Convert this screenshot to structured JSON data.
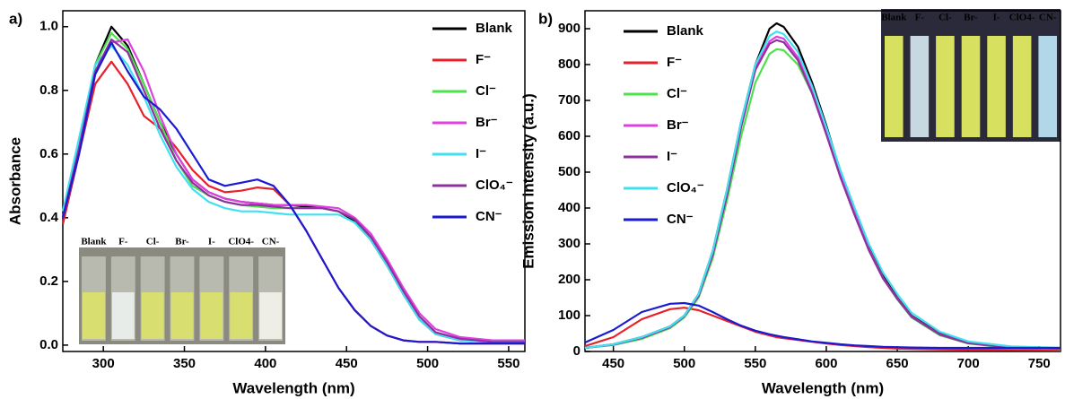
{
  "chart_data": [
    {
      "type": "line",
      "label": "a)",
      "xlabel": "Wavelength (nm)",
      "ylabel": "Absorbance",
      "xlim": [
        275,
        560
      ],
      "xticks": [
        300,
        350,
        400,
        450,
        500,
        550
      ],
      "ylim": [
        -0.02,
        1.05
      ],
      "yticks": [
        {
          "value": 0,
          "label": "0.0"
        },
        0.2,
        0.4,
        0.6,
        0.8,
        {
          "value": 1,
          "label": "1.0"
        }
      ],
      "legend": "upper right",
      "inset_labels": [
        "Blank",
        "F-",
        "Cl-",
        "Br-",
        "I-",
        "ClO4-",
        "CN-"
      ],
      "x": [
        275,
        285,
        295,
        305,
        315,
        325,
        335,
        345,
        355,
        365,
        375,
        385,
        395,
        405,
        415,
        425,
        435,
        445,
        455,
        465,
        475,
        485,
        495,
        505,
        520,
        540,
        560
      ],
      "series": [
        {
          "name": "Blank",
          "color": "#000000",
          "values": [
            0.38,
            0.6,
            0.88,
            1.0,
            0.94,
            0.82,
            0.7,
            0.6,
            0.52,
            0.48,
            0.46,
            0.45,
            0.445,
            0.44,
            0.44,
            0.435,
            0.43,
            0.42,
            0.39,
            0.33,
            0.25,
            0.16,
            0.08,
            0.035,
            0.015,
            0.01,
            0.01
          ]
        },
        {
          "name": "F⁻",
          "color": "#e8202a",
          "values": [
            0.38,
            0.6,
            0.82,
            0.89,
            0.82,
            0.72,
            0.68,
            0.62,
            0.55,
            0.5,
            0.48,
            0.485,
            0.495,
            0.49,
            0.44,
            0.36,
            0.27,
            0.18,
            0.11,
            0.06,
            0.03,
            0.015,
            0.01,
            0.01,
            0.005,
            0.005,
            0.005
          ]
        },
        {
          "name": "Cl⁻",
          "color": "#4ee04e",
          "values": [
            0.4,
            0.62,
            0.88,
            0.98,
            0.93,
            0.82,
            0.7,
            0.58,
            0.5,
            0.47,
            0.45,
            0.44,
            0.435,
            0.43,
            0.43,
            0.43,
            0.43,
            0.42,
            0.395,
            0.34,
            0.26,
            0.17,
            0.09,
            0.04,
            0.02,
            0.01,
            0.01
          ]
        },
        {
          "name": "Br⁻",
          "color": "#e040e0",
          "values": [
            0.4,
            0.6,
            0.85,
            0.95,
            0.96,
            0.86,
            0.72,
            0.6,
            0.52,
            0.48,
            0.46,
            0.45,
            0.445,
            0.44,
            0.44,
            0.44,
            0.435,
            0.43,
            0.4,
            0.35,
            0.27,
            0.18,
            0.1,
            0.05,
            0.025,
            0.015,
            0.015
          ]
        },
        {
          "name": "I⁻",
          "color": "#40e0f0",
          "values": [
            0.42,
            0.65,
            0.88,
            0.94,
            0.88,
            0.78,
            0.66,
            0.56,
            0.49,
            0.45,
            0.43,
            0.42,
            0.42,
            0.415,
            0.41,
            0.41,
            0.41,
            0.41,
            0.385,
            0.33,
            0.25,
            0.16,
            0.08,
            0.035,
            0.015,
            0.01,
            0.01
          ]
        },
        {
          "name": "ClO₄⁻",
          "color": "#9030a0",
          "values": [
            0.4,
            0.62,
            0.86,
            0.96,
            0.92,
            0.8,
            0.68,
            0.58,
            0.51,
            0.47,
            0.45,
            0.44,
            0.44,
            0.435,
            0.43,
            0.43,
            0.43,
            0.42,
            0.395,
            0.34,
            0.26,
            0.17,
            0.09,
            0.04,
            0.02,
            0.01,
            0.01
          ]
        },
        {
          "name": "CN⁻",
          "color": "#1a1ad0",
          "values": [
            0.4,
            0.6,
            0.85,
            0.95,
            0.86,
            0.78,
            0.74,
            0.68,
            0.6,
            0.52,
            0.5,
            0.51,
            0.52,
            0.5,
            0.44,
            0.36,
            0.27,
            0.18,
            0.11,
            0.06,
            0.03,
            0.015,
            0.01,
            0.01,
            0.005,
            0.005,
            0.005
          ]
        }
      ]
    },
    {
      "type": "line",
      "label": "b)",
      "xlabel": "Wavelength (nm)",
      "ylabel": "Emission intensity (a.u.)",
      "xlim": [
        430,
        765
      ],
      "xticks": [
        450,
        500,
        550,
        600,
        650,
        700,
        750
      ],
      "ylim": [
        0,
        950
      ],
      "yticks": [
        0,
        100,
        200,
        300,
        400,
        500,
        600,
        700,
        800,
        900
      ],
      "legend": "upper left",
      "inset_labels": [
        "Blank",
        "F-",
        "Cl-",
        "Br-",
        "I-",
        "ClO4-",
        "CN-"
      ],
      "x": [
        430,
        450,
        470,
        490,
        500,
        510,
        520,
        530,
        540,
        550,
        560,
        565,
        570,
        580,
        590,
        600,
        610,
        620,
        630,
        640,
        650,
        660,
        680,
        700,
        730,
        765
      ],
      "series": [
        {
          "name": "Blank",
          "color": "#000000",
          "values": [
            10,
            20,
            40,
            70,
            100,
            160,
            280,
            450,
            640,
            800,
            900,
            915,
            905,
            850,
            750,
            630,
            500,
            390,
            290,
            210,
            150,
            100,
            50,
            25,
            12,
            8
          ]
        },
        {
          "name": "F⁻",
          "color": "#e8202a",
          "values": [
            15,
            40,
            90,
            118,
            122,
            115,
            100,
            85,
            70,
            55,
            45,
            40,
            37,
            32,
            27,
            22,
            18,
            15,
            12,
            10,
            8,
            7,
            6,
            5,
            4,
            3
          ]
        },
        {
          "name": "Cl⁻",
          "color": "#4ee04e",
          "values": [
            10,
            18,
            35,
            65,
            95,
            150,
            260,
            420,
            600,
            750,
            830,
            843,
            840,
            800,
            720,
            610,
            490,
            380,
            285,
            205,
            145,
            95,
            45,
            22,
            10,
            7
          ]
        },
        {
          "name": "Br⁻",
          "color": "#e040e0",
          "values": [
            10,
            19,
            38,
            68,
            98,
            155,
            270,
            440,
            630,
            790,
            865,
            878,
            872,
            820,
            725,
            610,
            490,
            385,
            285,
            205,
            148,
            98,
            48,
            24,
            11,
            8
          ]
        },
        {
          "name": "I⁻",
          "color": "#9030a0",
          "values": [
            10,
            19,
            38,
            68,
            98,
            155,
            270,
            435,
            625,
            785,
            858,
            868,
            862,
            812,
            720,
            605,
            485,
            380,
            282,
            203,
            147,
            97,
            47,
            23,
            11,
            8
          ]
        },
        {
          "name": "ClO₄⁻",
          "color": "#40e0f0",
          "values": [
            10,
            20,
            40,
            70,
            100,
            160,
            280,
            450,
            640,
            800,
            880,
            892,
            885,
            835,
            740,
            625,
            505,
            400,
            300,
            220,
            160,
            108,
            55,
            28,
            14,
            10
          ]
        },
        {
          "name": "CN⁻",
          "color": "#1a1ad0",
          "values": [
            25,
            60,
            110,
            133,
            135,
            128,
            110,
            90,
            72,
            58,
            48,
            44,
            40,
            34,
            28,
            24,
            20,
            17,
            15,
            13,
            12,
            11,
            10,
            10,
            10,
            10
          ]
        }
      ]
    }
  ]
}
